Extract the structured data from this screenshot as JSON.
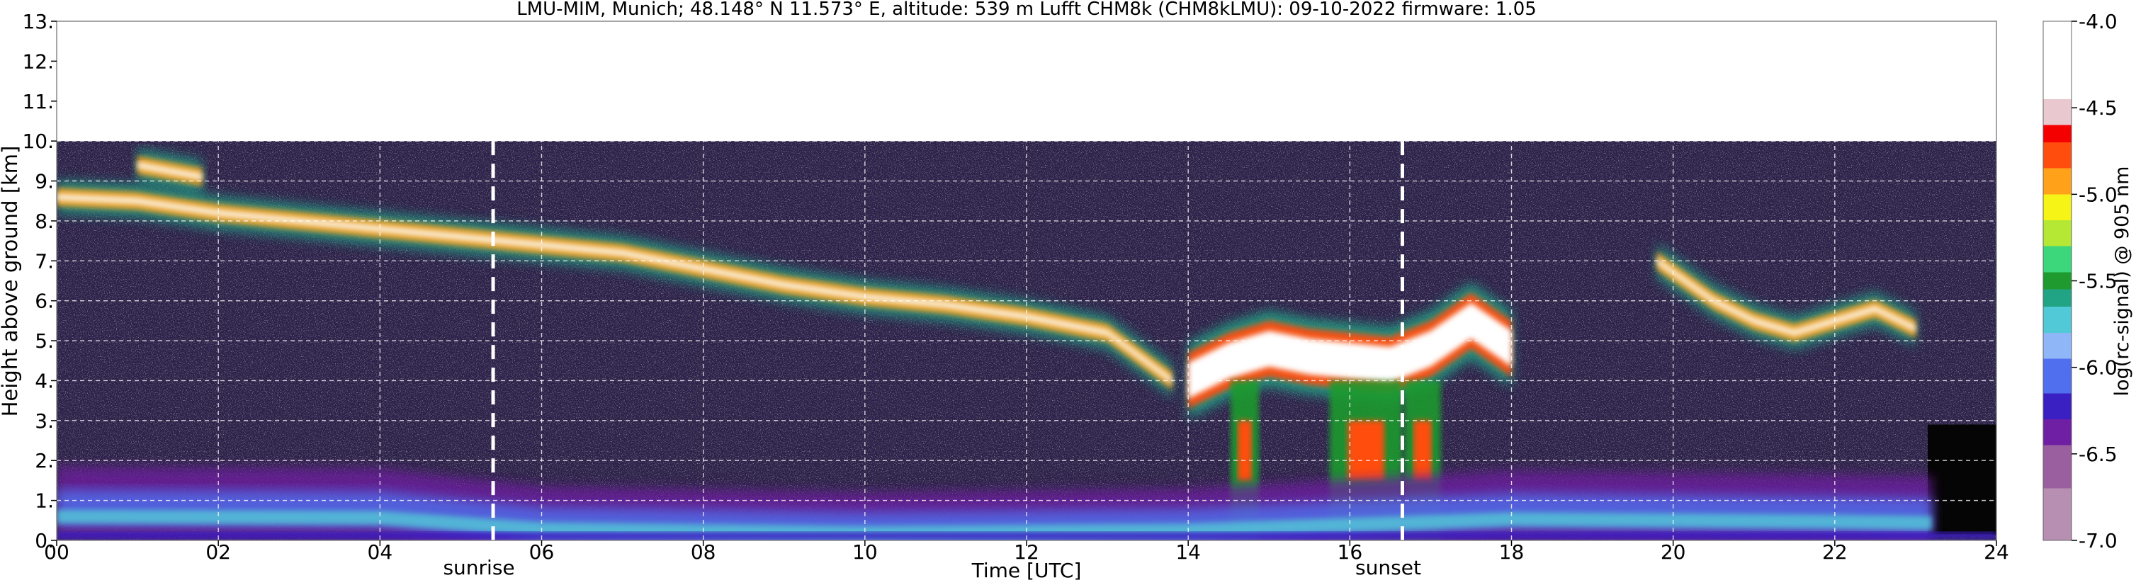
{
  "chart_data": {
    "type": "heatmap",
    "title": "LMU-MIM, Munich; 48.148° N 11.573° E, altitude: 539 m    Lufft CHM8k (CHM8kLMU): 09-10-2022    firmware: 1.05",
    "xlabel": "Time [UTC]",
    "ylabel": "Height above ground [km]",
    "xlim": [
      0,
      24
    ],
    "ylim": [
      0,
      13
    ],
    "x_ticks": [
      0,
      2,
      4,
      6,
      8,
      10,
      12,
      14,
      16,
      18,
      20,
      22,
      24
    ],
    "x_tick_labels": [
      "00",
      "02",
      "04",
      "06",
      "08",
      "10",
      "12",
      "14",
      "16",
      "18",
      "20",
      "22",
      "24"
    ],
    "y_ticks": [
      0,
      1,
      2,
      3,
      4,
      5,
      6,
      7,
      8,
      9,
      10,
      11,
      12,
      13
    ],
    "y_tick_labels": [
      "0.",
      "1.",
      "2.",
      "3.",
      "4.",
      "5.",
      "6.",
      "7.",
      "8.",
      "9.",
      "10.",
      "11.",
      "12.",
      "13."
    ],
    "grid": true,
    "data_top_km": 10.0,
    "markers": [
      {
        "label": "sunrise",
        "time": 5.4
      },
      {
        "label": "sunset",
        "time": 16.65
      }
    ],
    "colorbar": {
      "label": "log(rc-signal) @ 905 nm",
      "range": [
        -7.0,
        -4.0
      ],
      "ticks": [
        -4.0,
        -4.5,
        -5.0,
        -5.5,
        -6.0,
        -6.5,
        -7.0
      ],
      "tick_labels": [
        "-4.0",
        "-4.5",
        "-5.0",
        "-5.5",
        "-6.0",
        "-6.5",
        "-7.0"
      ],
      "stops": [
        {
          "value": -7.0,
          "color": "#b78fb2"
        },
        {
          "value": -6.7,
          "color": "#9a5f9e"
        },
        {
          "value": -6.45,
          "color": "#6f1fa3"
        },
        {
          "value": -6.3,
          "color": "#3a1fc2"
        },
        {
          "value": -6.15,
          "color": "#4f6fee"
        },
        {
          "value": -5.95,
          "color": "#8fb7f8"
        },
        {
          "value": -5.8,
          "color": "#52c9d6"
        },
        {
          "value": -5.65,
          "color": "#21a386"
        },
        {
          "value": -5.55,
          "color": "#1e9a2e"
        },
        {
          "value": -5.45,
          "color": "#3bd77a"
        },
        {
          "value": -5.3,
          "color": "#b4e834"
        },
        {
          "value": -5.15,
          "color": "#f6f316"
        },
        {
          "value": -5.0,
          "color": "#ffa21a"
        },
        {
          "value": -4.85,
          "color": "#ff4d0e"
        },
        {
          "value": -4.7,
          "color": "#f40000"
        },
        {
          "value": -4.6,
          "color": "#e9c9cf"
        },
        {
          "value": -4.45,
          "color": "#ffffff"
        },
        {
          "value": -4.0,
          "color": "#ffffff"
        }
      ]
    },
    "features": [
      {
        "name": "cirrus layer",
        "t": [
          0.0,
          1.0,
          2.0,
          3.0,
          4.0,
          5.0,
          6.0,
          7.0,
          8.0,
          9.0,
          10.0,
          11.0,
          12.0,
          13.0,
          13.8
        ],
        "h": [
          8.6,
          8.5,
          8.2,
          8.0,
          7.8,
          7.6,
          7.4,
          7.2,
          6.8,
          6.4,
          6.1,
          5.9,
          5.6,
          5.2,
          4.0
        ]
      },
      {
        "name": "cirrus cap",
        "t": [
          1.0,
          1.8
        ],
        "h": [
          9.4,
          9.1
        ]
      },
      {
        "name": "convective clouds",
        "t": [
          14.0,
          14.5,
          15.0,
          15.5,
          16.0,
          16.5,
          17.0,
          17.5,
          18.0
        ],
        "h": [
          4.0,
          4.5,
          4.8,
          4.6,
          4.5,
          4.4,
          4.8,
          5.5,
          4.8
        ]
      },
      {
        "name": "evening clouds",
        "t": [
          19.8,
          20.5,
          21.0,
          21.5,
          22.0,
          22.5,
          23.0
        ],
        "h": [
          7.0,
          6.0,
          5.5,
          5.2,
          5.5,
          5.8,
          5.3
        ]
      },
      {
        "name": "boundary layer",
        "t": [
          0.0,
          4.0,
          6.0,
          10.0,
          12.0,
          14.0,
          18.0,
          22.0,
          23.2
        ],
        "h": [
          1.9,
          1.8,
          0.9,
          0.6,
          0.7,
          0.8,
          1.7,
          1.5,
          1.4
        ]
      }
    ]
  }
}
